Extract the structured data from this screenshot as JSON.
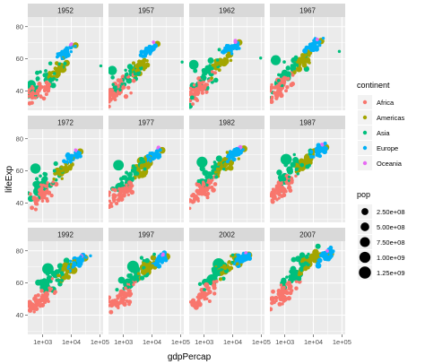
{
  "chart_data": {
    "type": "scatter",
    "facet_by": "year",
    "facets": [
      "1952",
      "1957",
      "1962",
      "1967",
      "1972",
      "1977",
      "1982",
      "1987",
      "1992",
      "1997",
      "2002",
      "2007"
    ],
    "xlabel": "gdpPercap",
    "ylabel": "lifeExp",
    "x_scale": "log10",
    "xlim": [
      300,
      130000
    ],
    "ylim": [
      28,
      86
    ],
    "x_ticks": [
      1000,
      10000,
      100000
    ],
    "x_tick_labels": [
      "1e+03",
      "1e+04",
      "1e+05"
    ],
    "y_ticks": [
      40,
      60,
      80
    ],
    "y_tick_labels": [
      "40",
      "60",
      "80"
    ],
    "grid": true,
    "legend_position": "right",
    "color_legend": {
      "title": "continent",
      "entries": [
        {
          "label": "Africa",
          "color": "#F8766D"
        },
        {
          "label": "Americas",
          "color": "#A3A500"
        },
        {
          "label": "Asia",
          "color": "#00BF7D"
        },
        {
          "label": "Europe",
          "color": "#00B0F6"
        },
        {
          "label": "Oceania",
          "color": "#E76BF3"
        }
      ]
    },
    "size_legend": {
      "title": "pop",
      "entries": [
        {
          "label": "2.50e+08",
          "value": 250000000
        },
        {
          "label": "5.00e+08",
          "value": 500000000
        },
        {
          "label": "7.50e+08",
          "value": 750000000
        },
        {
          "label": "1.00e+09",
          "value": 1000000000
        },
        {
          "label": "1.25e+09",
          "value": 1250000000
        }
      ]
    },
    "highlights": [
      {
        "year": "1952",
        "continent": "Asia",
        "gdpPercap": 108382,
        "lifeExp": 55.6,
        "pop": 160000
      },
      {
        "year": "1957",
        "continent": "Asia",
        "gdpPercap": 113523,
        "lifeExp": 58.0,
        "pop": 212846
      },
      {
        "year": "1962",
        "continent": "Asia",
        "gdpPercap": 95458,
        "lifeExp": 60.5,
        "pop": 358266
      },
      {
        "year": "1967",
        "continent": "Asia",
        "gdpPercap": 80895,
        "lifeExp": 64.6,
        "pop": 575003
      },
      {
        "year": "1952",
        "continent": "Asia",
        "gdpPercap": 400,
        "lifeExp": 44.0,
        "pop": 556263527
      },
      {
        "year": "1952",
        "continent": "Asia",
        "gdpPercap": 547,
        "lifeExp": 37.4,
        "pop": 372000000
      },
      {
        "year": "2007",
        "continent": "Asia",
        "gdpPercap": 4959,
        "lifeExp": 73.0,
        "pop": 1318683096
      },
      {
        "year": "2007",
        "continent": "Asia",
        "gdpPercap": 2452,
        "lifeExp": 64.7,
        "pop": 1110396331
      }
    ]
  }
}
